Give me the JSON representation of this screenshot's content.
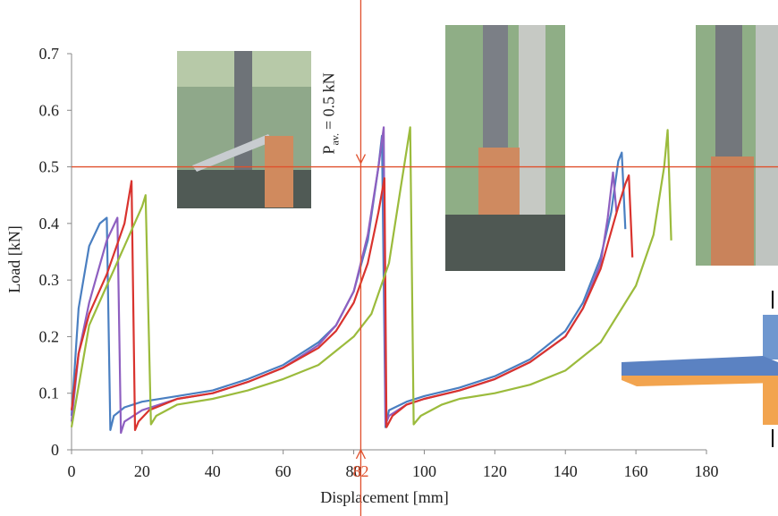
{
  "chart_data": {
    "type": "line",
    "xlabel": "Displacement [mm]",
    "ylabel": "Load [kN]",
    "annotation": {
      "main": "P",
      "sub": "av.",
      "rest": "= 0.5 kN"
    },
    "hline": 0.5,
    "vline": 82,
    "ref_color": "#e0502c",
    "xlim": [
      0,
      180
    ],
    "xticks": [
      0,
      20,
      40,
      60,
      80,
      100,
      120,
      140,
      160,
      180
    ],
    "ylim": [
      0,
      0.7
    ],
    "yticks": [
      0,
      0.1,
      0.2,
      0.3,
      0.4,
      0.5,
      0.6,
      0.7
    ],
    "series": [
      {
        "color": "#4a7fc1",
        "x": [
          0,
          2,
          5,
          8,
          10,
          11,
          12,
          15,
          20,
          30,
          40,
          50,
          60,
          70,
          75,
          80,
          84,
          87,
          88,
          89,
          90,
          95,
          100,
          110,
          120,
          130,
          140,
          145,
          150,
          153,
          155,
          156,
          157
        ],
        "values": [
          0.06,
          0.25,
          0.36,
          0.4,
          0.41,
          0.035,
          0.06,
          0.075,
          0.085,
          0.095,
          0.105,
          0.125,
          0.15,
          0.19,
          0.22,
          0.28,
          0.37,
          0.5,
          0.555,
          0.04,
          0.07,
          0.085,
          0.095,
          0.11,
          0.13,
          0.16,
          0.21,
          0.26,
          0.34,
          0.42,
          0.51,
          0.525,
          0.39
        ]
      },
      {
        "color": "#8e5fc0",
        "x": [
          0,
          2,
          5,
          10,
          13,
          14,
          15,
          20,
          30,
          40,
          50,
          60,
          70,
          75,
          80,
          84,
          87,
          88.5,
          89,
          90,
          95,
          100,
          110,
          120,
          130,
          140,
          145,
          150,
          152,
          153.5,
          154.5
        ],
        "values": [
          0.05,
          0.17,
          0.26,
          0.37,
          0.41,
          0.03,
          0.05,
          0.07,
          0.09,
          0.1,
          0.12,
          0.145,
          0.185,
          0.22,
          0.28,
          0.38,
          0.5,
          0.57,
          0.045,
          0.06,
          0.08,
          0.09,
          0.105,
          0.125,
          0.155,
          0.2,
          0.25,
          0.33,
          0.41,
          0.49,
          0.42
        ]
      },
      {
        "color": "#d9332e",
        "x": [
          0,
          2,
          5,
          10,
          15,
          17,
          18,
          19,
          22,
          30,
          40,
          50,
          60,
          70,
          75,
          80,
          84,
          87,
          88.7,
          89.3,
          91,
          95,
          100,
          110,
          120,
          130,
          140,
          145,
          150,
          155,
          157,
          158,
          159
        ],
        "values": [
          0.07,
          0.17,
          0.24,
          0.31,
          0.4,
          0.475,
          0.035,
          0.05,
          0.07,
          0.09,
          0.1,
          0.12,
          0.145,
          0.18,
          0.21,
          0.26,
          0.33,
          0.42,
          0.48,
          0.04,
          0.06,
          0.08,
          0.09,
          0.105,
          0.125,
          0.155,
          0.2,
          0.25,
          0.32,
          0.43,
          0.47,
          0.485,
          0.34
        ]
      },
      {
        "color": "#9bbb3c",
        "x": [
          0,
          5,
          10,
          15,
          20,
          21,
          22.5,
          24,
          30,
          40,
          50,
          60,
          70,
          80,
          85,
          90,
          93,
          96,
          97,
          99,
          105,
          110,
          120,
          130,
          140,
          150,
          160,
          165,
          168,
          169,
          170
        ],
        "values": [
          0.04,
          0.22,
          0.29,
          0.36,
          0.43,
          0.45,
          0.045,
          0.06,
          0.08,
          0.09,
          0.105,
          0.125,
          0.15,
          0.2,
          0.24,
          0.33,
          0.45,
          0.57,
          0.045,
          0.06,
          0.08,
          0.09,
          0.1,
          0.115,
          0.14,
          0.19,
          0.29,
          0.38,
          0.5,
          0.565,
          0.37
        ]
      }
    ]
  }
}
